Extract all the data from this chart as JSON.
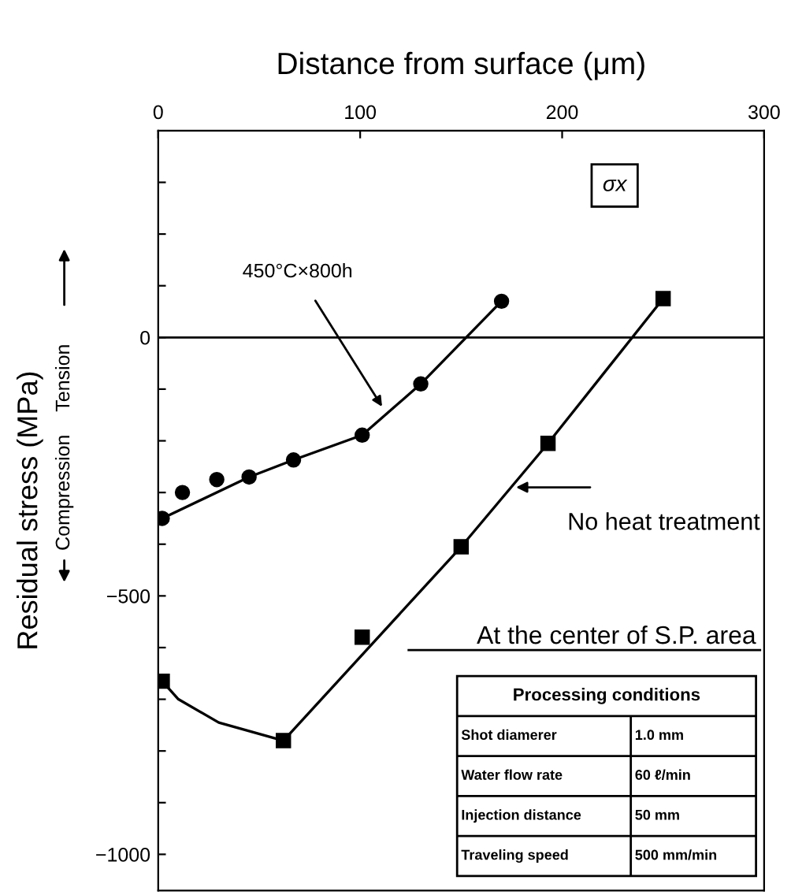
{
  "chart_data": {
    "type": "scatter",
    "xlabel": "Distance from surface (μm)",
    "ylabel": "Residual stress (MPa)",
    "xlim": [
      0,
      300
    ],
    "xticks": [
      0,
      100,
      200,
      300
    ],
    "ylim": [
      -1070,
      400
    ],
    "yticks": [
      {
        "value": 300,
        "label": null
      },
      {
        "value": 200,
        "label": null
      },
      {
        "value": 100,
        "label": null
      },
      0,
      {
        "value": -100,
        "label": null
      },
      {
        "value": -200,
        "label": null
      },
      {
        "value": -300,
        "label": null
      },
      {
        "value": -400,
        "label": null
      },
      {
        "value": -500,
        "label": "−500"
      },
      {
        "value": -600,
        "label": null
      },
      {
        "value": -700,
        "label": null
      },
      {
        "value": -800,
        "label": null
      },
      {
        "value": -900,
        "label": null
      },
      {
        "value": -1000,
        "label": "−1000"
      }
    ],
    "series": [
      {
        "marker": "circle",
        "color": "#000000",
        "x": [
          2,
          12,
          29,
          45,
          67,
          101,
          130,
          170
        ],
        "values": [
          -350,
          -300,
          -275,
          -270,
          -237,
          -189,
          -90,
          70
        ]
      },
      {
        "type": "line",
        "color": "#000000",
        "x": [
          2,
          45,
          67,
          101,
          130,
          170
        ],
        "values": [
          -350,
          -270,
          -237,
          -189,
          -90,
          70
        ]
      },
      {
        "marker": "square",
        "color": "#000000",
        "x": [
          2,
          62,
          101,
          150,
          193,
          250
        ],
        "values": [
          -665,
          -780,
          -580,
          -405,
          -205,
          75
        ]
      },
      {
        "type": "line",
        "color": "#000000",
        "x": [
          2,
          10,
          30,
          62,
          150,
          193,
          250
        ],
        "values": [
          -665,
          -700,
          -745,
          -780,
          -405,
          -205,
          75
        ]
      }
    ],
    "ref_lines": [
      {
        "axis": "y",
        "value": 0,
        "color": "#000000"
      }
    ],
    "annotations": [
      {
        "text": "450°C×800h",
        "x": 112,
        "y": -141
      },
      {
        "text": "No heat treatment",
        "x": 175,
        "y": -290
      },
      "σx",
      "Tension",
      "Compression",
      "At the center of S.P. area",
      "Processing conditions",
      "Shot diamerer",
      "1.0 mm",
      "Water flow rate",
      "60 ℓ/min",
      "Injection distance",
      "50 mm",
      "Traveling speed",
      "500 mm/min"
    ],
    "grid": false,
    "legend": false
  }
}
